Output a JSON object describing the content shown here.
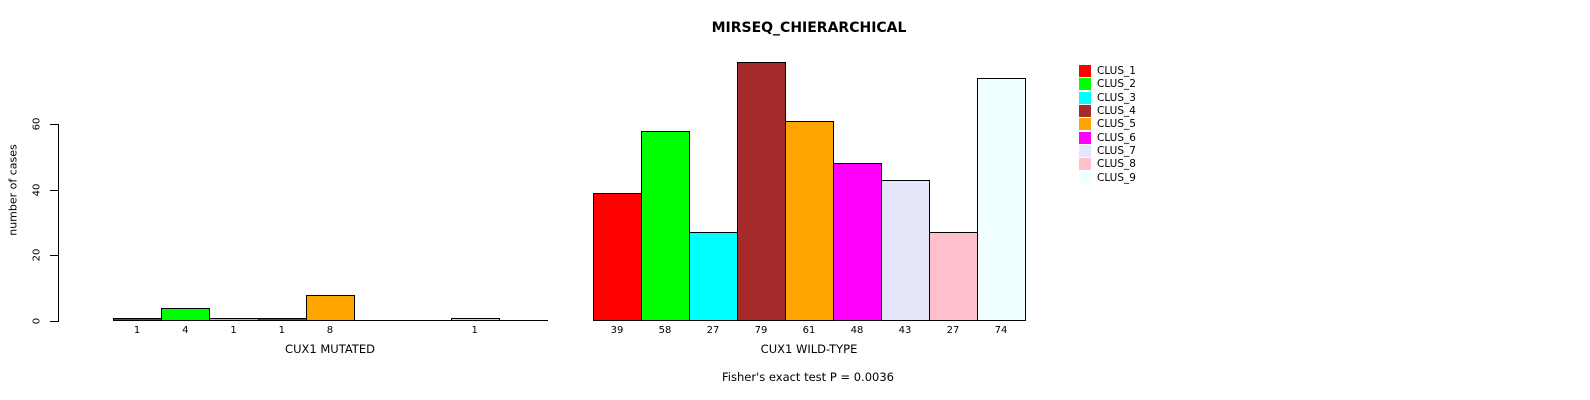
{
  "chart_data": {
    "type": "bar",
    "title": "MIRSEQ_CHIERARCHICAL",
    "ylabel": "number of cases",
    "yticks": [
      0,
      20,
      40,
      60
    ],
    "ylim": [
      0,
      79
    ],
    "grid": false,
    "legend_position": "right",
    "categories": [
      "CLUS_1",
      "CLUS_2",
      "CLUS_3",
      "CLUS_4",
      "CLUS_5",
      "CLUS_6",
      "CLUS_7",
      "CLUS_8",
      "CLUS_9"
    ],
    "colors": [
      "#FF0000",
      "#00FF00",
      "#00FFFF",
      "#A52A2A",
      "#FFA500",
      "#FF00FF",
      "#E6E6FA",
      "#FFC0CB",
      "#F0FFFF"
    ],
    "groups": [
      {
        "label": "CUX1 MUTATED",
        "values": [
          1,
          4,
          1,
          1,
          8,
          0,
          0,
          1,
          0
        ]
      },
      {
        "label": "CUX1 WILD-TYPE",
        "values": [
          39,
          58,
          27,
          79,
          61,
          48,
          43,
          27,
          74
        ]
      }
    ],
    "annotation": "Fisher's exact test P = 0.0036"
  }
}
